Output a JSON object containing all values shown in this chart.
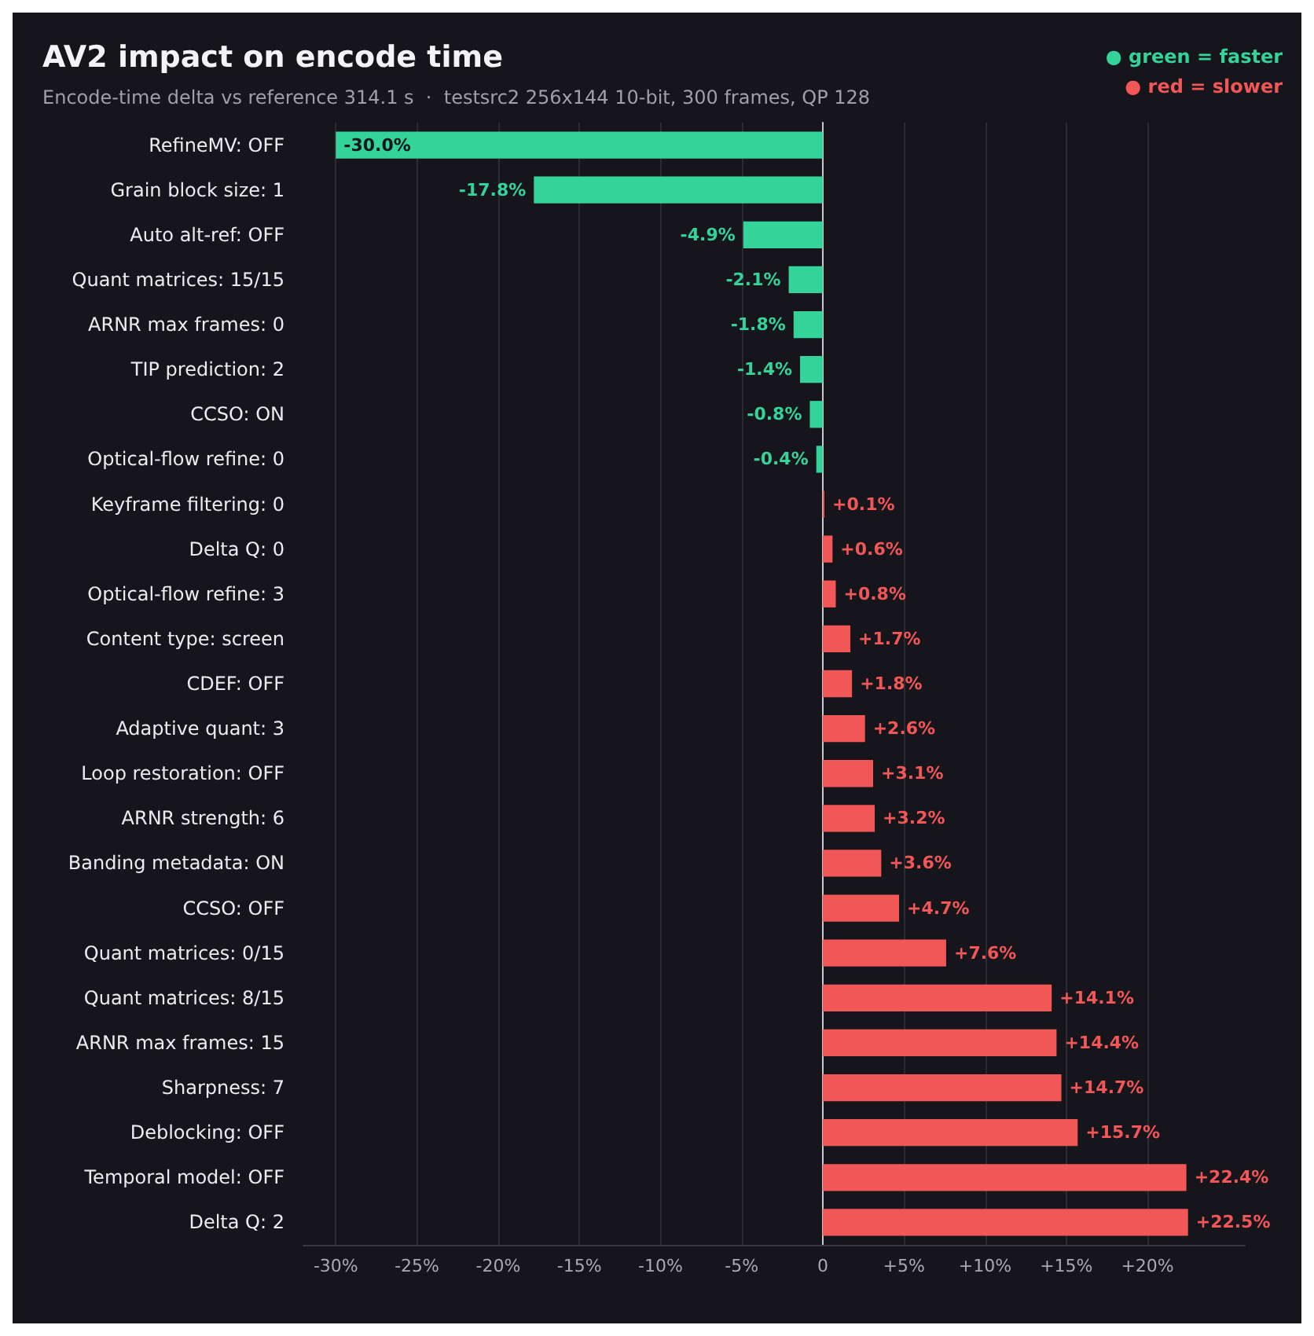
{
  "chart_data": {
    "type": "bar",
    "orientation": "horizontal",
    "title": "AV2 impact on encode time",
    "subtitle": "Encode-time delta vs reference 314.1 s  ·  testsrc2 256x144 10-bit, 300 frames, QP 128",
    "annotations": [
      "● green = faster",
      "● red = slower"
    ],
    "categories": [
      "RefineMV: OFF",
      "Grain block size: 1",
      "Auto alt-ref: OFF",
      "Quant matrices: 15/15",
      "ARNR max frames: 0",
      "TIP prediction: 2",
      "CCSO: ON",
      "Optical-flow refine: 0",
      "Keyframe filtering: 0",
      "Delta Q: 0",
      "Optical-flow refine: 3",
      "Content type: screen",
      "CDEF: OFF",
      "Adaptive quant: 3",
      "Loop restoration: OFF",
      "ARNR strength: 6",
      "Banding metadata: ON",
      "CCSO: OFF",
      "Quant matrices: 0/15",
      "Quant matrices: 8/15",
      "ARNR max frames: 15",
      "Sharpness: 7",
      "Deblocking: OFF",
      "Temporal model: OFF",
      "Delta Q: 2"
    ],
    "values": [
      -30.0,
      -17.8,
      -4.9,
      -2.1,
      -1.8,
      -1.4,
      -0.8,
      -0.4,
      0.1,
      0.6,
      0.8,
      1.7,
      1.8,
      2.6,
      3.1,
      3.2,
      3.6,
      4.7,
      7.6,
      14.1,
      14.4,
      14.7,
      15.7,
      22.4,
      22.5
    ],
    "value_labels": [
      "-30.0%",
      "-17.8%",
      "-4.9%",
      "-2.1%",
      "-1.8%",
      "-1.4%",
      "-0.8%",
      "-0.4%",
      "+0.1%",
      "+0.6%",
      "+0.8%",
      "+1.7%",
      "+1.8%",
      "+2.6%",
      "+3.1%",
      "+3.2%",
      "+3.6%",
      "+4.7%",
      "+7.6%",
      "+14.1%",
      "+14.4%",
      "+14.7%",
      "+15.7%",
      "+22.4%",
      "+22.5%"
    ],
    "colors": [
      "#34d399",
      "#34d399",
      "#34d399",
      "#34d399",
      "#34d399",
      "#34d399",
      "#34d399",
      "#34d399",
      "#f25757",
      "#f25757",
      "#f25757",
      "#f25757",
      "#f25757",
      "#f25757",
      "#f25757",
      "#f25757",
      "#f25757",
      "#f25757",
      "#f25757",
      "#f25757",
      "#f25757",
      "#f25757",
      "#f25757",
      "#f25757",
      "#f25757"
    ],
    "xlim": [
      -32,
      26
    ],
    "xticks": [
      {
        "value": -30,
        "label": "-30%"
      },
      {
        "value": -25,
        "label": "-25%"
      },
      {
        "value": -20,
        "label": "-20%"
      },
      {
        "value": -15,
        "label": "-15%"
      },
      {
        "value": -10,
        "label": "-10%"
      },
      {
        "value": -5,
        "label": "-5%"
      },
      0,
      {
        "value": 5,
        "label": "+5%"
      },
      {
        "value": 10,
        "label": "+10%"
      },
      {
        "value": 15,
        "label": "+15%"
      },
      {
        "value": 20,
        "label": "+20%"
      }
    ],
    "grid": "x"
  }
}
